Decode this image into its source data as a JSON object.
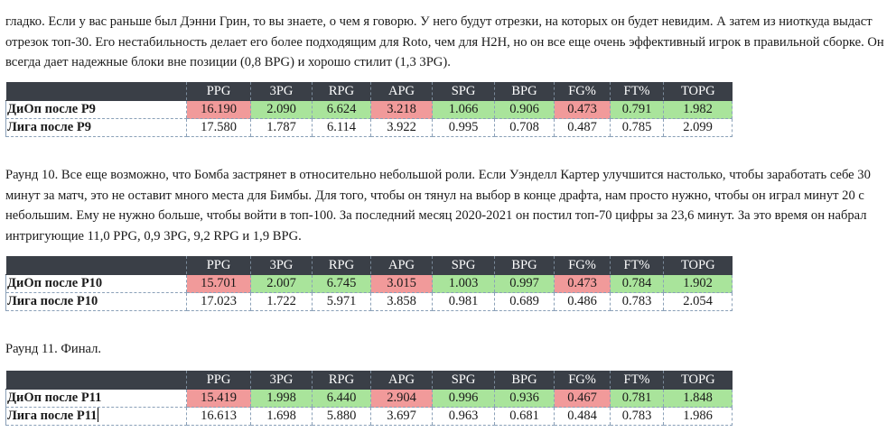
{
  "paragraphs": {
    "p1": "гладко. Если у вас раньше был Дэнни Грин, то вы знаете, о чем я говорю. У него будут отрезки, на которых он будет невидим. А затем из ниоткуда выдаст отрезок топ-30. Его нестабильность делает его более подходящим для Roto, чем для H2H, но он все еще очень эффективный игрок в правильной сборке. Он всегда дает надежные блоки вне позиции (0,8 BPG) и хорошо стилит (1,3 3PG).",
    "p2": "Раунд 10. Все еще возможно, что Бомба застрянет в относительно небольшой роли. Если Уэнделл Картер улучшится настолько, чтобы заработать себе 30 минут за матч, это не оставит много места для Бимбы. Для того, чтобы он тянул на выбор в конце драфта, нам просто нужно, чтобы он играл минут 20 с небольшим. Ему не нужно больше, чтобы войти в топ-100. За последний месяц 2020-2021 он постил топ-70 цифры за 23,6 минут. За это время он набрал интригующие 11,0 PPG, 0,9 3PG, 9,2 RPG и 1,9 BPG.",
    "p3": "Раунд 11. Финал."
  },
  "table_headers": [
    "PPG",
    "3PG",
    "RPG",
    "APG",
    "SPG",
    "BPG",
    "FG%",
    "FT%",
    "TOPG"
  ],
  "tables": [
    {
      "team_label": "ДиОп после Р9",
      "team_values": [
        "16.190",
        "2.090",
        "6.624",
        "3.218",
        "1.066",
        "0.906",
        "0.473",
        "0.791",
        "1.982"
      ],
      "team_colors": [
        "red",
        "green",
        "green",
        "red",
        "green",
        "green",
        "red",
        "green",
        "green"
      ],
      "league_label": "Лига после Р9",
      "league_values": [
        "17.580",
        "1.787",
        "6.114",
        "3.922",
        "0.995",
        "0.708",
        "0.487",
        "0.785",
        "2.099"
      ]
    },
    {
      "team_label": "ДиОп после Р10",
      "team_values": [
        "15.701",
        "2.007",
        "6.745",
        "3.015",
        "1.003",
        "0.997",
        "0.473",
        "0.784",
        "1.902"
      ],
      "team_colors": [
        "red",
        "green",
        "green",
        "red",
        "green",
        "green",
        "red",
        "green",
        "green"
      ],
      "league_label": "Лига после Р10",
      "league_values": [
        "17.023",
        "1.722",
        "5.971",
        "3.858",
        "0.981",
        "0.689",
        "0.486",
        "0.783",
        "2.054"
      ]
    },
    {
      "team_label": "ДиОп после Р11",
      "team_values": [
        "15.419",
        "1.998",
        "6.440",
        "2.904",
        "0.996",
        "0.936",
        "0.467",
        "0.781",
        "1.848"
      ],
      "team_colors": [
        "red",
        "green",
        "green",
        "red",
        "green",
        "green",
        "red",
        "green",
        "green"
      ],
      "league_label": "Лига после Р11",
      "league_values": [
        "16.613",
        "1.698",
        "5.880",
        "3.697",
        "0.963",
        "0.681",
        "0.484",
        "0.783",
        "1.986"
      ]
    }
  ],
  "colors": {
    "header_bg": "#3a3f47",
    "worse_cell": "#f19a9a",
    "better_cell": "#a9e49b"
  }
}
